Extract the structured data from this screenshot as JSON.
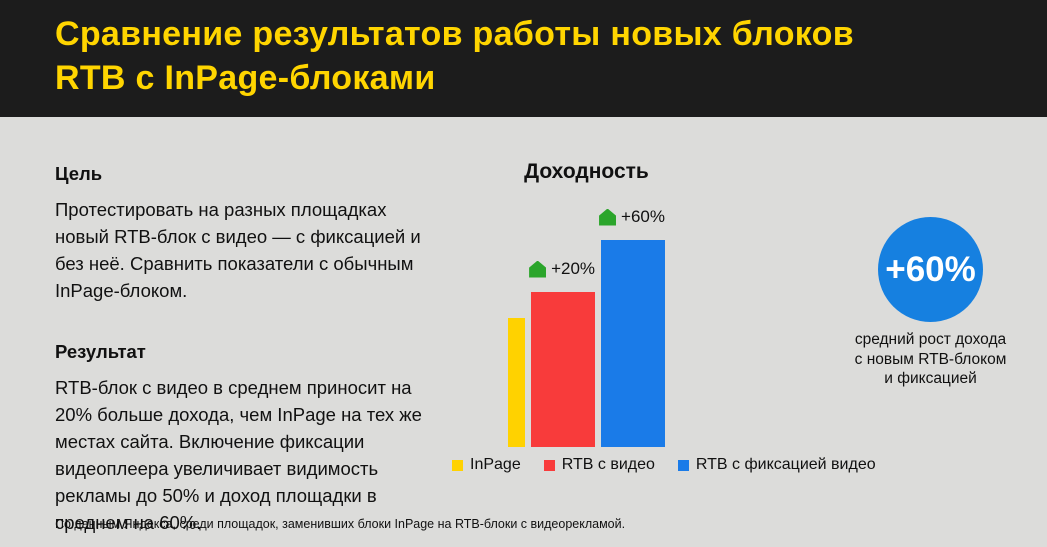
{
  "header": {
    "title_lines": [
      "Сравнение результатов работы новых блоков",
      "RTB с InPage-блоками"
    ],
    "bg_color": "#1c1c1c",
    "title_color": "#ffd500"
  },
  "left": {
    "goal_heading": "Цель",
    "goal_text": "Протестировать на разных площадках новый RTB-блок с видео — с фиксацией и без неё. Сравнить показатели с обычным InPage-блоком.",
    "result_heading": "Результат",
    "result_text": "RTB-блок с видео в среднем приносит на 20% больше дохода, чем InPage на тех же местах сайта. Включение фиксации видеоплеера увеличивает видимость рекламы до 50% и доход площадки в среднем на 60%."
  },
  "chart_data": {
    "type": "bar",
    "title": "Доходность",
    "categories": [
      "InPage",
      "RTB с видео",
      "RTB с фиксацией видео"
    ],
    "values": [
      100,
      120,
      160
    ],
    "value_note": "relative revenue, InPage = 100%",
    "annotations": [
      "",
      "+20%",
      "+60%"
    ],
    "bar_colors": [
      "#ffd200",
      "#f83b3b",
      "#1a7be8"
    ],
    "arrow_color": "#2ba52b",
    "xlabel": "",
    "ylabel": "",
    "grid": false,
    "legend_position": "bottom"
  },
  "highlight": {
    "value": "+60%",
    "caption_lines": [
      "средний рост дохода",
      "с новым RTB-блоком",
      "и фиксацией"
    ],
    "circle_color": "#1680e0"
  },
  "footnote": {
    "text": "По данным Яндекса, среди площадок, заменивших блоки InPage на RTB-блоки с видеорекламой."
  }
}
